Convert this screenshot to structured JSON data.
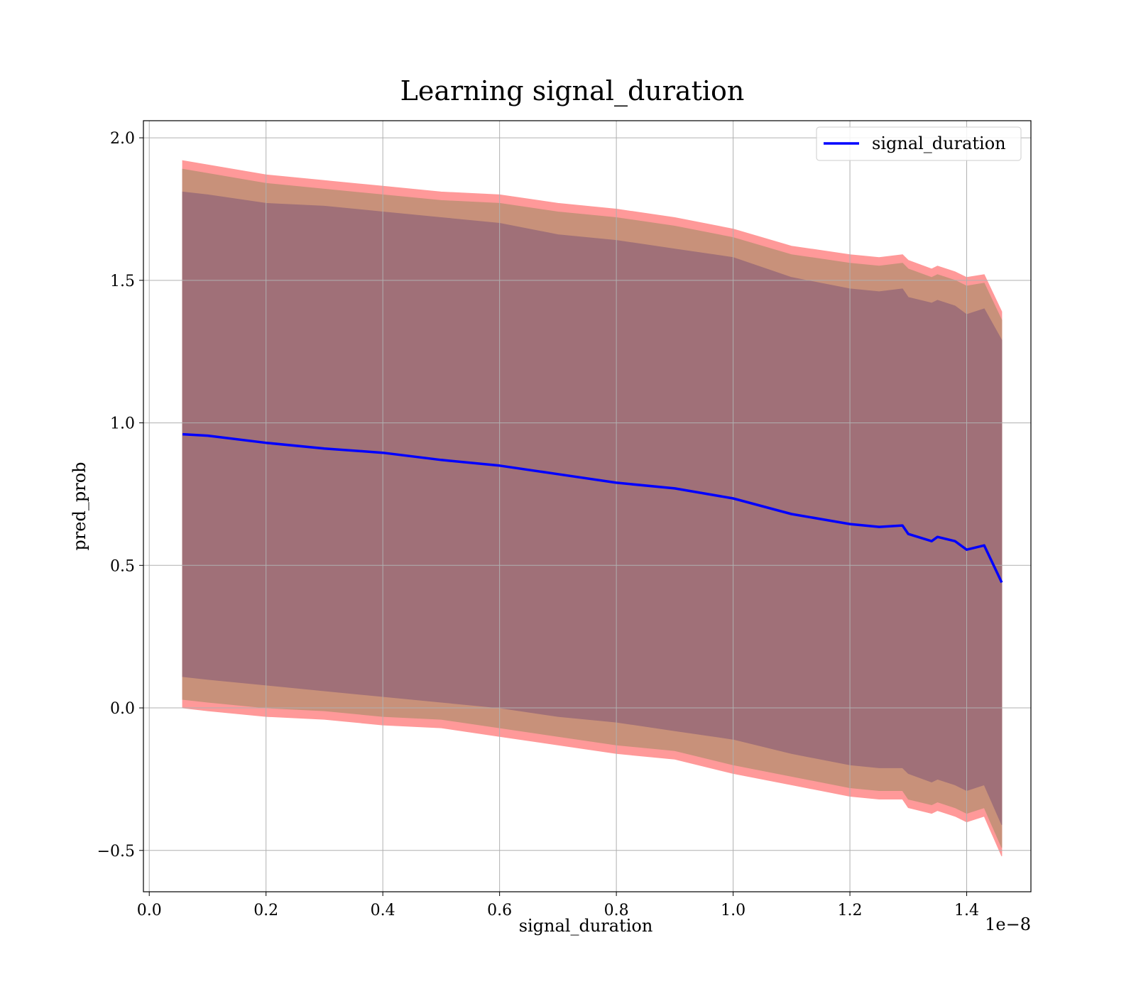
{
  "chart_data": {
    "type": "line",
    "title": "Learning signal_duration",
    "xlabel": "signal_duration",
    "ylabel": "pred_prob",
    "x_offset_text": "1e−8",
    "xlim": [
      -0.01,
      1.51
    ],
    "ylim": [
      -0.645,
      2.06
    ],
    "xticks": [
      0.0,
      0.2,
      0.4,
      0.6,
      0.8,
      1.0,
      1.2,
      1.4
    ],
    "xtick_labels": [
      "0.0",
      "0.2",
      "0.4",
      "0.6",
      "0.8",
      "1.0",
      "1.2",
      "1.4"
    ],
    "yticks": [
      -0.5,
      0.0,
      0.5,
      1.0,
      1.5,
      2.0
    ],
    "ytick_labels": [
      "−0.5",
      "0.0",
      "0.5",
      "1.0",
      "1.5",
      "2.0"
    ],
    "grid": true,
    "legend": {
      "position": "top-right",
      "entries": [
        "signal_duration"
      ]
    },
    "colors": {
      "line": "#0000ff",
      "band_outer": "#ff9999",
      "band_mid": "#c8917a",
      "band_inner": "#a07078"
    },
    "series": [
      {
        "name": "signal_duration",
        "x": [
          0.057,
          0.1,
          0.2,
          0.3,
          0.4,
          0.5,
          0.6,
          0.7,
          0.8,
          0.9,
          1.0,
          1.1,
          1.2,
          1.25,
          1.29,
          1.3,
          1.34,
          1.35,
          1.38,
          1.4,
          1.43,
          1.46
        ],
        "y": [
          0.96,
          0.955,
          0.93,
          0.91,
          0.895,
          0.87,
          0.85,
          0.82,
          0.79,
          0.77,
          0.735,
          0.68,
          0.645,
          0.635,
          0.64,
          0.61,
          0.585,
          0.6,
          0.585,
          0.555,
          0.57,
          0.44
        ],
        "band_outer_upper": [
          1.92,
          1.905,
          1.87,
          1.85,
          1.83,
          1.81,
          1.8,
          1.77,
          1.75,
          1.72,
          1.68,
          1.62,
          1.59,
          1.58,
          1.59,
          1.57,
          1.54,
          1.55,
          1.53,
          1.51,
          1.52,
          1.39
        ],
        "band_outer_lower": [
          0.0,
          -0.01,
          -0.03,
          -0.04,
          -0.06,
          -0.07,
          -0.1,
          -0.13,
          -0.16,
          -0.18,
          -0.23,
          -0.27,
          -0.31,
          -0.32,
          -0.32,
          -0.35,
          -0.37,
          -0.36,
          -0.38,
          -0.4,
          -0.38,
          -0.52
        ],
        "band_mid_upper": [
          1.89,
          1.875,
          1.84,
          1.82,
          1.8,
          1.78,
          1.77,
          1.74,
          1.72,
          1.69,
          1.65,
          1.59,
          1.56,
          1.55,
          1.56,
          1.54,
          1.51,
          1.52,
          1.5,
          1.48,
          1.49,
          1.36
        ],
        "band_mid_lower": [
          0.03,
          0.02,
          0.0,
          -0.01,
          -0.03,
          -0.04,
          -0.07,
          -0.1,
          -0.13,
          -0.15,
          -0.2,
          -0.24,
          -0.28,
          -0.29,
          -0.29,
          -0.32,
          -0.34,
          -0.33,
          -0.35,
          -0.37,
          -0.35,
          -0.49
        ],
        "band_inner_upper": [
          1.81,
          1.8,
          1.77,
          1.76,
          1.74,
          1.72,
          1.7,
          1.66,
          1.64,
          1.61,
          1.58,
          1.51,
          1.47,
          1.46,
          1.47,
          1.44,
          1.42,
          1.43,
          1.41,
          1.38,
          1.4,
          1.29
        ],
        "band_inner_lower": [
          0.11,
          0.1,
          0.08,
          0.06,
          0.04,
          0.02,
          0.0,
          -0.03,
          -0.05,
          -0.08,
          -0.11,
          -0.16,
          -0.2,
          -0.21,
          -0.21,
          -0.23,
          -0.26,
          -0.25,
          -0.27,
          -0.29,
          -0.27,
          -0.41
        ]
      }
    ]
  }
}
